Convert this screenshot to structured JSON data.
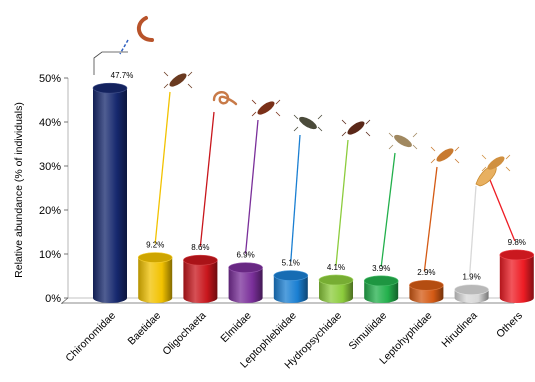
{
  "chart_data": {
    "type": "bar",
    "categories": [
      "Chironomidae",
      "Baetidae",
      "Oligochaeta",
      "Elmidae",
      "Leptophlebiidae",
      "Hydropsychidae",
      "Simuliidae",
      "Leptohyphidae",
      "Hirudinea",
      "Others"
    ],
    "values": [
      47.7,
      9.2,
      8.6,
      6.9,
      5.1,
      4.1,
      3.9,
      2.9,
      1.9,
      9.8
    ],
    "value_labels": [
      "47.7%",
      "9.2%",
      "8.6%",
      "6.9%",
      "5.1%",
      "4.1%",
      "3.9%",
      "2.9%",
      "1.9%",
      "9.8%"
    ],
    "colors": [
      "#16286e",
      "#f2c200",
      "#c8161c",
      "#7a2f9a",
      "#1a7fd2",
      "#8ccc3c",
      "#23b04c",
      "#d45a14",
      "#d8d8d8",
      "#ee1c24"
    ],
    "icons": [
      "chironomid-larva-icon",
      "baetid-nymph-icon",
      "oligochaete-worm-icon",
      "elmid-larva-icon",
      "leptophlebiid-nymph-icon",
      "hydropsychid-larva-icon",
      "simuliid-larva-icon",
      "leptohyphid-nymph-icon",
      "leech-icon",
      "others-icon"
    ],
    "ylabel": "Relative abundance (% of individuals)",
    "yticks": [
      "0%",
      "10%",
      "20%",
      "30%",
      "40%",
      "50%"
    ],
    "ylim": [
      0,
      50
    ],
    "style": "3d-cylinder"
  }
}
